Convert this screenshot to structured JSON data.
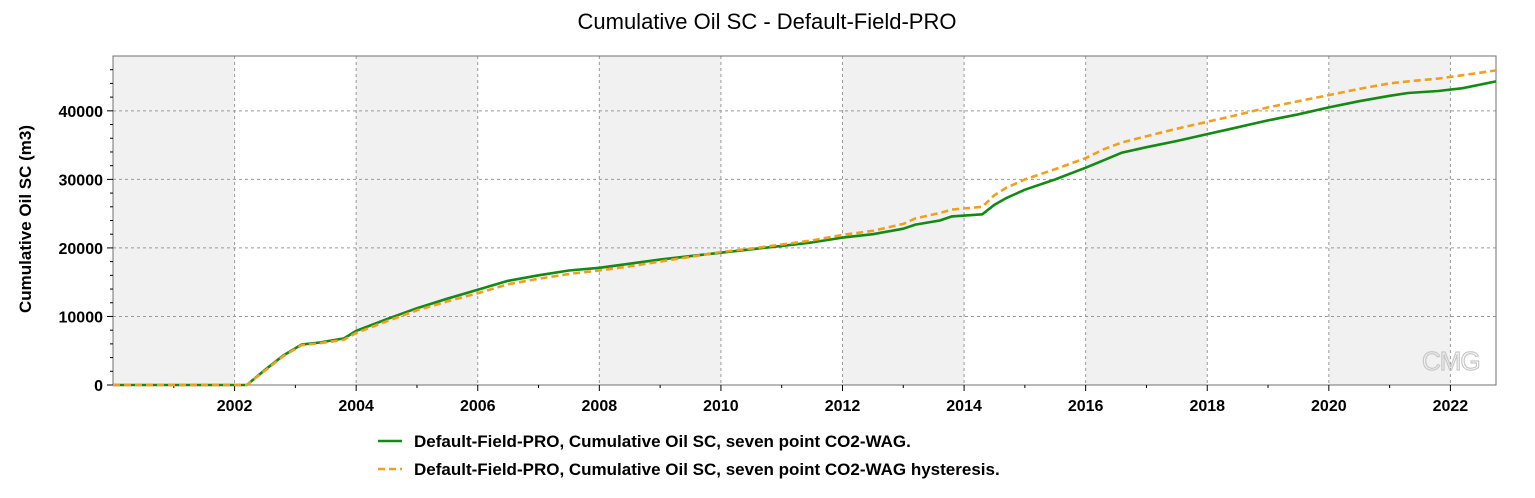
{
  "watermark": "CMG",
  "chart_data": {
    "type": "line",
    "title": "Cumulative Oil SC - Default-Field-PRO",
    "xlabel": "",
    "ylabel": "Cumulative Oil SC (m3)",
    "xlim": [
      2000.0,
      2022.75
    ],
    "ylim": [
      0,
      48000
    ],
    "x_ticks": [
      "2002",
      "2004",
      "2006",
      "2008",
      "2010",
      "2012",
      "2014",
      "2016",
      "2018",
      "2020",
      "2022"
    ],
    "y_ticks": [
      "0",
      "10000",
      "20000",
      "30000",
      "40000"
    ],
    "grid": true,
    "legend_position": "bottom",
    "series": [
      {
        "name": "Default-Field-PRO, Cumulative Oil SC, seven point CO2-WAG.",
        "color": "#138a13",
        "style": "solid",
        "x": [
          2000.0,
          2002.0,
          2002.2,
          2002.5,
          2002.8,
          2003.1,
          2003.4,
          2003.8,
          2004.0,
          2004.5,
          2005.0,
          2005.5,
          2006.0,
          2006.5,
          2007.0,
          2007.5,
          2008.0,
          2008.5,
          2009.0,
          2009.5,
          2010.0,
          2010.5,
          2011.0,
          2011.5,
          2012.0,
          2012.5,
          2013.0,
          2013.2,
          2013.6,
          2013.8,
          2014.3,
          2014.5,
          2014.7,
          2015.0,
          2015.5,
          2016.0,
          2016.3,
          2016.6,
          2017.0,
          2017.5,
          2018.0,
          2018.5,
          2019.0,
          2019.5,
          2020.0,
          2020.5,
          2021.0,
          2021.3,
          2021.8,
          2022.2,
          2022.75
        ],
        "values": [
          0,
          0,
          0,
          2200,
          4300,
          5900,
          6200,
          6800,
          7900,
          9600,
          11200,
          12600,
          13900,
          15200,
          16000,
          16700,
          17100,
          17700,
          18300,
          18800,
          19300,
          19800,
          20300,
          20800,
          21500,
          22000,
          22800,
          23400,
          24000,
          24600,
          24900,
          26300,
          27300,
          28500,
          30000,
          31700,
          32800,
          33900,
          34700,
          35600,
          36600,
          37600,
          38600,
          39500,
          40500,
          41400,
          42200,
          42600,
          42900,
          43300,
          44300
        ]
      },
      {
        "name": "Default-Field-PRO, Cumulative Oil SC, seven point CO2-WAG hysteresis.",
        "color": "#f0a020",
        "style": "dashed",
        "x": [
          2000.0,
          2002.0,
          2002.2,
          2002.5,
          2002.8,
          2003.1,
          2003.4,
          2003.8,
          2004.0,
          2004.5,
          2005.0,
          2005.5,
          2006.0,
          2006.5,
          2007.0,
          2007.5,
          2008.0,
          2008.5,
          2009.0,
          2009.5,
          2010.0,
          2010.5,
          2011.0,
          2011.5,
          2012.0,
          2012.5,
          2013.0,
          2013.2,
          2013.6,
          2013.8,
          2014.3,
          2014.5,
          2014.7,
          2015.0,
          2015.5,
          2016.0,
          2016.3,
          2016.6,
          2017.0,
          2017.5,
          2018.0,
          2018.5,
          2019.0,
          2019.5,
          2020.0,
          2020.5,
          2021.0,
          2021.3,
          2021.8,
          2022.2,
          2022.75
        ],
        "values": [
          0,
          0,
          0,
          2100,
          4200,
          5800,
          6100,
          6600,
          7600,
          9300,
          10900,
          12200,
          13400,
          14700,
          15500,
          16200,
          16700,
          17300,
          18000,
          18700,
          19400,
          19900,
          20500,
          21100,
          21900,
          22500,
          23500,
          24300,
          25100,
          25600,
          26000,
          27700,
          28800,
          30000,
          31500,
          33100,
          34400,
          35400,
          36300,
          37400,
          38400,
          39400,
          40500,
          41400,
          42300,
          43200,
          44000,
          44300,
          44700,
          45200,
          45900
        ]
      }
    ]
  }
}
